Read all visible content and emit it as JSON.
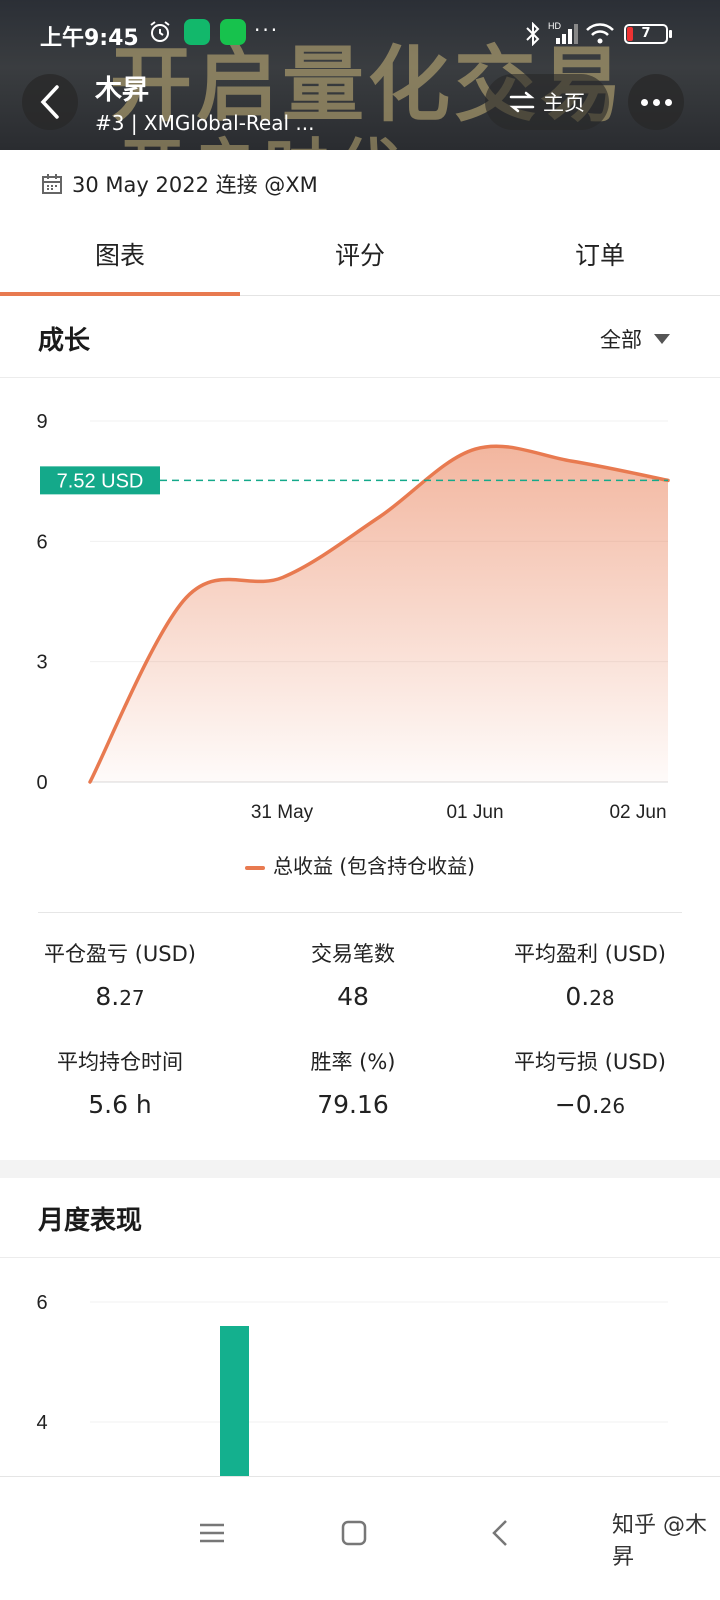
{
  "status_bar": {
    "time": "上午9:45",
    "more": "···",
    "battery": "7",
    "signal_label": "HD"
  },
  "banner": {
    "line1": "开启量化交易",
    "line2": "开启时代"
  },
  "header": {
    "title": "木昇",
    "subtitle": "#3 | XMGlobal-Real ...",
    "home_label": "主页"
  },
  "info": {
    "text": "30 May 2022 连接 @XM"
  },
  "tabs": [
    {
      "label": "图表",
      "active": true
    },
    {
      "label": "评分",
      "active": false
    },
    {
      "label": "订单",
      "active": false
    }
  ],
  "growth": {
    "title": "成长",
    "filter": "全部",
    "current_label": "7.52 USD",
    "legend": "总收益 (包含持仓收益)"
  },
  "stats": [
    {
      "label": "平仓盈亏 (USD)",
      "int": "8.",
      "dec": "27"
    },
    {
      "label": "交易笔数",
      "int": "48",
      "dec": ""
    },
    {
      "label": "平均盈利 (USD)",
      "int": "0.",
      "dec": "28"
    },
    {
      "label": "平均持仓时间",
      "int": "5.6 h",
      "dec": ""
    },
    {
      "label": "胜率 (%)",
      "int": "79.16",
      "dec": ""
    },
    {
      "label": "平均亏损 (USD)",
      "int": "−0.",
      "dec": "26"
    }
  ],
  "monthly": {
    "title": "月度表现"
  },
  "navbar": {
    "watermark": "知乎 @木昇"
  },
  "colors": {
    "accent": "#e87a50",
    "teal": "#14a98a",
    "bar": "#14b08e"
  },
  "chart_data": [
    {
      "type": "area",
      "title": "",
      "xlabel": "",
      "ylabel": "",
      "x_ticks": [
        "31 May",
        "01 Jun",
        "02 Jun"
      ],
      "y_ticks": [
        0,
        3,
        6,
        9
      ],
      "ylim": [
        0,
        9
      ],
      "series": [
        {
          "name": "总收益 (包含持仓收益)",
          "x": [
            "30 May 00:00",
            "30 May 12:00",
            "31 May 00:00",
            "31 May 12:00",
            "01 Jun 00:00",
            "01 Jun 12:00",
            "02 Jun 00:00"
          ],
          "values": [
            0,
            4.6,
            5.1,
            6.6,
            8.3,
            8.0,
            7.52
          ]
        }
      ],
      "reference_line": {
        "value": 7.52,
        "label": "7.52 USD"
      },
      "grid": true
    },
    {
      "type": "bar",
      "title": "月度表现",
      "y_ticks": [
        4,
        6
      ],
      "series": [
        {
          "values": [
            5.6
          ]
        }
      ],
      "grid": true
    }
  ]
}
